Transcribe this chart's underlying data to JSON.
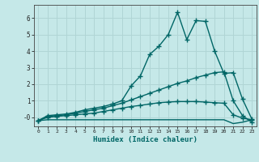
{
  "xlabel": "Humidex (Indice chaleur)",
  "xlim": [
    -0.5,
    23.5
  ],
  "ylim": [
    -0.55,
    6.8
  ],
  "bg_color": "#c5e8e8",
  "grid_color": "#b0d5d5",
  "line_color": "#006666",
  "xticks": [
    0,
    1,
    2,
    3,
    4,
    5,
    6,
    7,
    8,
    9,
    10,
    11,
    12,
    13,
    14,
    15,
    16,
    17,
    18,
    19,
    20,
    21,
    22,
    23
  ],
  "yticks": [
    0,
    1,
    2,
    3,
    4,
    5,
    6
  ],
  "ytick_labels": [
    "-0",
    "1",
    "2",
    "3",
    "4",
    "5",
    "6"
  ],
  "series": [
    {
      "x": [
        0,
        1,
        2,
        3,
        4,
        5,
        6,
        7,
        8,
        9,
        10,
        11,
        12,
        13,
        14,
        15,
        16,
        17,
        18,
        19,
        20,
        21,
        22,
        23
      ],
      "y": [
        -0.2,
        0.1,
        0.15,
        0.2,
        0.3,
        0.45,
        0.55,
        0.65,
        0.8,
        1.0,
        1.9,
        2.5,
        3.8,
        4.3,
        5.0,
        6.35,
        4.7,
        5.85,
        5.8,
        4.0,
        2.65,
        2.7,
        1.1,
        -0.1
      ],
      "marker": "+",
      "markersize": 4,
      "linewidth": 1.0
    },
    {
      "x": [
        0,
        1,
        2,
        3,
        4,
        5,
        6,
        7,
        8,
        9,
        10,
        11,
        12,
        13,
        14,
        15,
        16,
        17,
        18,
        19,
        20,
        21,
        22,
        23
      ],
      "y": [
        -0.2,
        0.05,
        0.1,
        0.15,
        0.25,
        0.35,
        0.45,
        0.55,
        0.7,
        0.85,
        1.05,
        1.25,
        1.45,
        1.65,
        1.85,
        2.05,
        2.2,
        2.4,
        2.55,
        2.7,
        2.75,
        1.0,
        0.1,
        -0.3
      ],
      "marker": "+",
      "markersize": 4,
      "linewidth": 1.0
    },
    {
      "x": [
        0,
        1,
        2,
        3,
        4,
        5,
        6,
        7,
        8,
        9,
        10,
        11,
        12,
        13,
        14,
        15,
        16,
        17,
        18,
        19,
        20,
        21,
        22,
        23
      ],
      "y": [
        -0.2,
        0.0,
        0.05,
        0.1,
        0.15,
        0.2,
        0.25,
        0.35,
        0.45,
        0.55,
        0.65,
        0.72,
        0.8,
        0.88,
        0.92,
        0.95,
        0.95,
        0.95,
        0.92,
        0.88,
        0.85,
        0.15,
        -0.05,
        -0.15
      ],
      "marker": "+",
      "markersize": 4,
      "linewidth": 1.0
    },
    {
      "x": [
        0,
        1,
        2,
        3,
        4,
        5,
        6,
        7,
        8,
        9,
        10,
        11,
        12,
        13,
        14,
        15,
        16,
        17,
        18,
        19,
        20,
        21,
        22,
        23
      ],
      "y": [
        -0.2,
        -0.15,
        -0.15,
        -0.15,
        -0.15,
        -0.15,
        -0.15,
        -0.15,
        -0.15,
        -0.15,
        -0.15,
        -0.15,
        -0.15,
        -0.15,
        -0.15,
        -0.15,
        -0.15,
        -0.15,
        -0.15,
        -0.15,
        -0.15,
        -0.38,
        -0.3,
        -0.15
      ],
      "marker": null,
      "markersize": 0,
      "linewidth": 1.0
    }
  ]
}
